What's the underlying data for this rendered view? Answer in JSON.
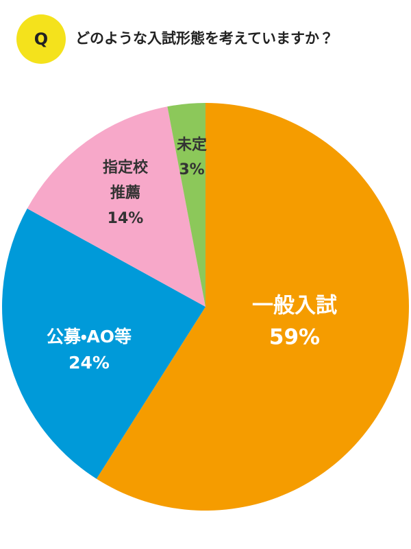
{
  "badge": "Q",
  "chart_data": {
    "type": "pie",
    "title": "どのような入試形態を考えていますか？",
    "categories": [
      "一般入試",
      "公募・AO等",
      "指定校推薦",
      "未定"
    ],
    "values": [
      59,
      24,
      14,
      3
    ],
    "value_labels": [
      "59%",
      "24%",
      "14%",
      "3%"
    ],
    "colors": [
      "#f59c00",
      "#009ad9",
      "#f7a8c9",
      "#8cc85a"
    ]
  }
}
